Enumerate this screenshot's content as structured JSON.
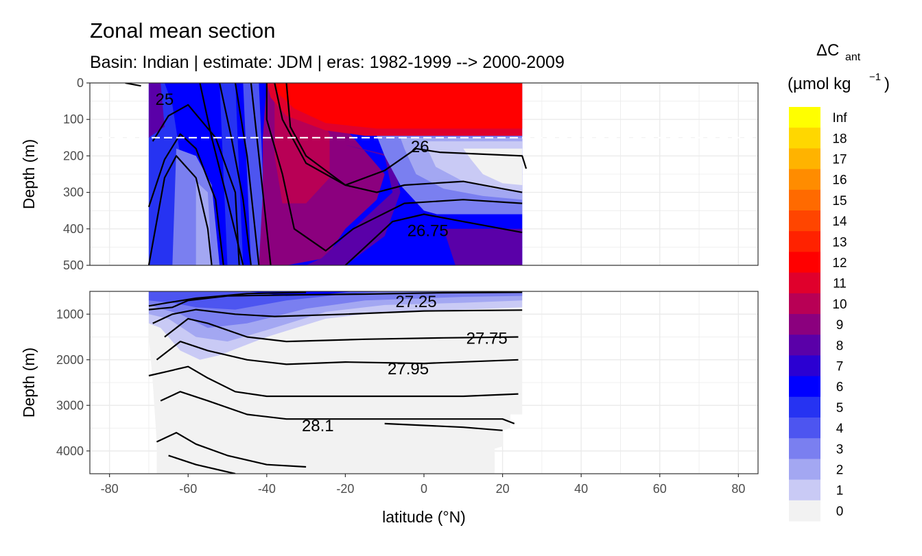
{
  "chart_data": {
    "type": "heatmap",
    "title": "Zonal mean section",
    "subtitle": "Basin: Indian | estimate: JDM  | eras: 1982-1999 --> 2000-2009",
    "xlabel": "latitude (°N)",
    "ylabel": "Depth (m)",
    "xlim": [
      -85,
      85
    ],
    "x_ticks": [
      "-80",
      "-60",
      "-40",
      "-20",
      "0",
      "20",
      "40",
      "60",
      "80"
    ],
    "x_tick_values": [
      -80,
      -60,
      -40,
      -20,
      0,
      20,
      40,
      60,
      80
    ],
    "data_extent_lat": [
      -70,
      25
    ],
    "mixed_layer_reference_depth": 150,
    "panels": [
      {
        "name": "upper",
        "ylim": [
          500,
          0
        ],
        "y_ticks": [
          "0",
          "100",
          "200",
          "300",
          "400",
          "500"
        ],
        "y_tick_values": [
          0,
          100,
          200,
          300,
          400,
          500
        ],
        "contour_labels": [
          {
            "text": "25",
            "lat": -66,
            "depth": 45
          },
          {
            "text": "26",
            "lat": -1,
            "depth": 175
          },
          {
            "text": "26.75",
            "lat": 1,
            "depth": 405
          }
        ]
      },
      {
        "name": "lower",
        "ylim": [
          4500,
          500
        ],
        "y_ticks": [
          "1000",
          "2000",
          "3000",
          "4000"
        ],
        "y_tick_values": [
          1000,
          2000,
          3000,
          4000
        ],
        "contour_labels": [
          {
            "text": "27.25",
            "lat": -2,
            "depth": 725
          },
          {
            "text": "27.75",
            "lat": 16,
            "depth": 1530
          },
          {
            "text": "27.95",
            "lat": -4,
            "depth": 2200
          },
          {
            "text": "28.1",
            "lat": -27,
            "depth": 3450
          }
        ]
      }
    ],
    "legend": {
      "title_main": "ΔC",
      "title_sub": "ant",
      "units_prefix": "(µmol kg",
      "units_exp": "−1",
      "units_suffix": ")",
      "position": "right",
      "levels": [
        {
          "label": "Inf",
          "color": "#ffff00"
        },
        {
          "label": "18",
          "color": "#ffd700"
        },
        {
          "label": "17",
          "color": "#ffb300"
        },
        {
          "label": "16",
          "color": "#ff8c00"
        },
        {
          "label": "15",
          "color": "#ff6a00"
        },
        {
          "label": "14",
          "color": "#ff4500"
        },
        {
          "label": "13",
          "color": "#ff2200"
        },
        {
          "label": "12",
          "color": "#ff0000"
        },
        {
          "label": "11",
          "color": "#e0002c"
        },
        {
          "label": "10",
          "color": "#b80055"
        },
        {
          "label": "9",
          "color": "#8b007e"
        },
        {
          "label": "8",
          "color": "#5a00a8"
        },
        {
          "label": "7",
          "color": "#2b00d2"
        },
        {
          "label": "6",
          "color": "#0000ff"
        },
        {
          "label": "5",
          "color": "#2633f2"
        },
        {
          "label": "4",
          "color": "#4d55f0"
        },
        {
          "label": "3",
          "color": "#7a7ff0"
        },
        {
          "label": "2",
          "color": "#a3a7f2"
        },
        {
          "label": "1",
          "color": "#c9caf5"
        },
        {
          "label": "0",
          "color": "#f2f2f2"
        }
      ]
    }
  }
}
